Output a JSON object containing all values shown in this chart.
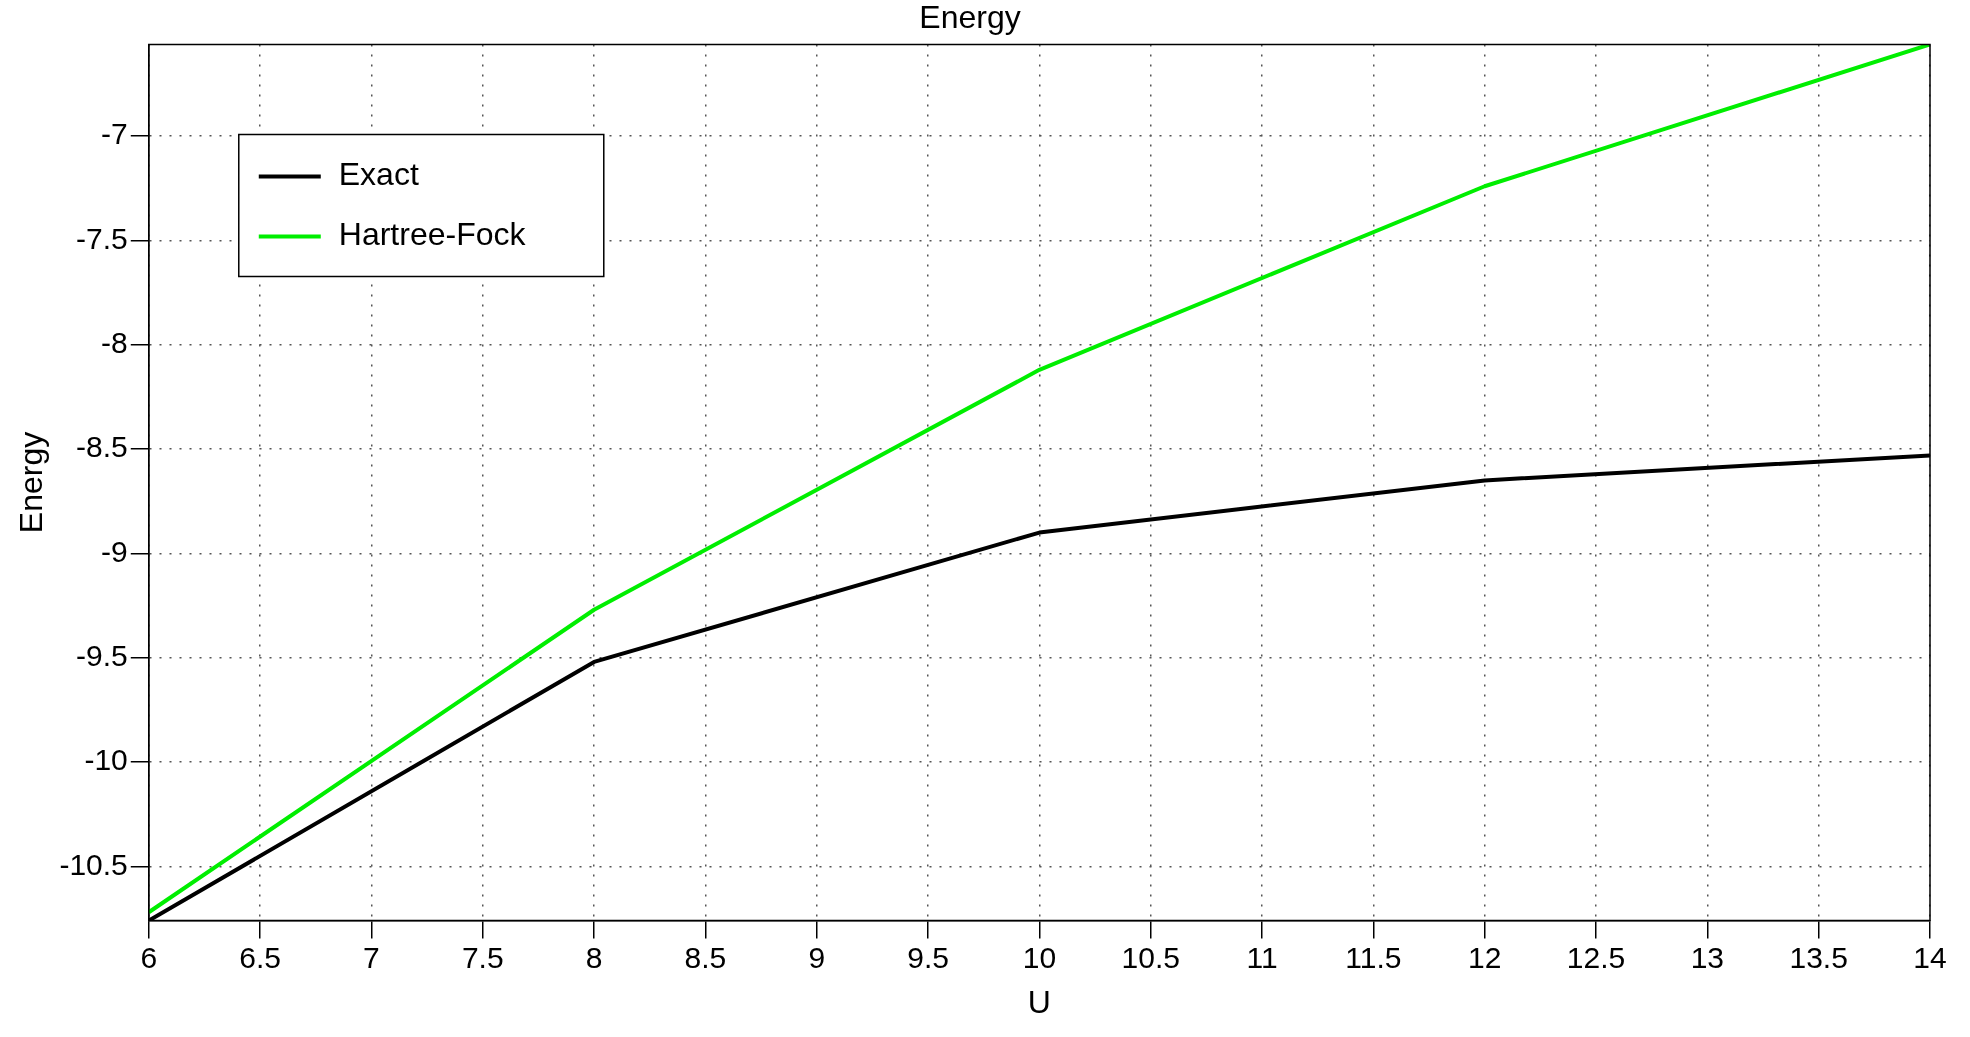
{
  "chart_data": {
    "type": "line",
    "title": "Energy",
    "xlabel": "U",
    "ylabel": "Energy",
    "x": [
      6,
      8,
      10,
      12,
      14
    ],
    "series": [
      {
        "name": "Exact",
        "color": "#000000",
        "values": [
          -10.76,
          -9.52,
          -8.9,
          -8.65,
          -8.53
        ]
      },
      {
        "name": "Hartree-Fock",
        "color": "#00ee00",
        "values": [
          -10.72,
          -9.27,
          -8.12,
          -7.24,
          -6.56
        ]
      }
    ],
    "xlim": [
      6,
      14
    ],
    "xticks": [
      6,
      6.5,
      7,
      7.5,
      8,
      8.5,
      9,
      9.5,
      10,
      10.5,
      11,
      11.5,
      12,
      12.5,
      13,
      13.5,
      14
    ],
    "ylim": [
      -10.76,
      -6.56
    ],
    "yticks": [
      -10.5,
      -10,
      -9.5,
      -9,
      -8.5,
      -8,
      -7.5,
      -7
    ],
    "grid": true,
    "legend": "top left",
    "marker": "none",
    "line_style": "solid"
  }
}
